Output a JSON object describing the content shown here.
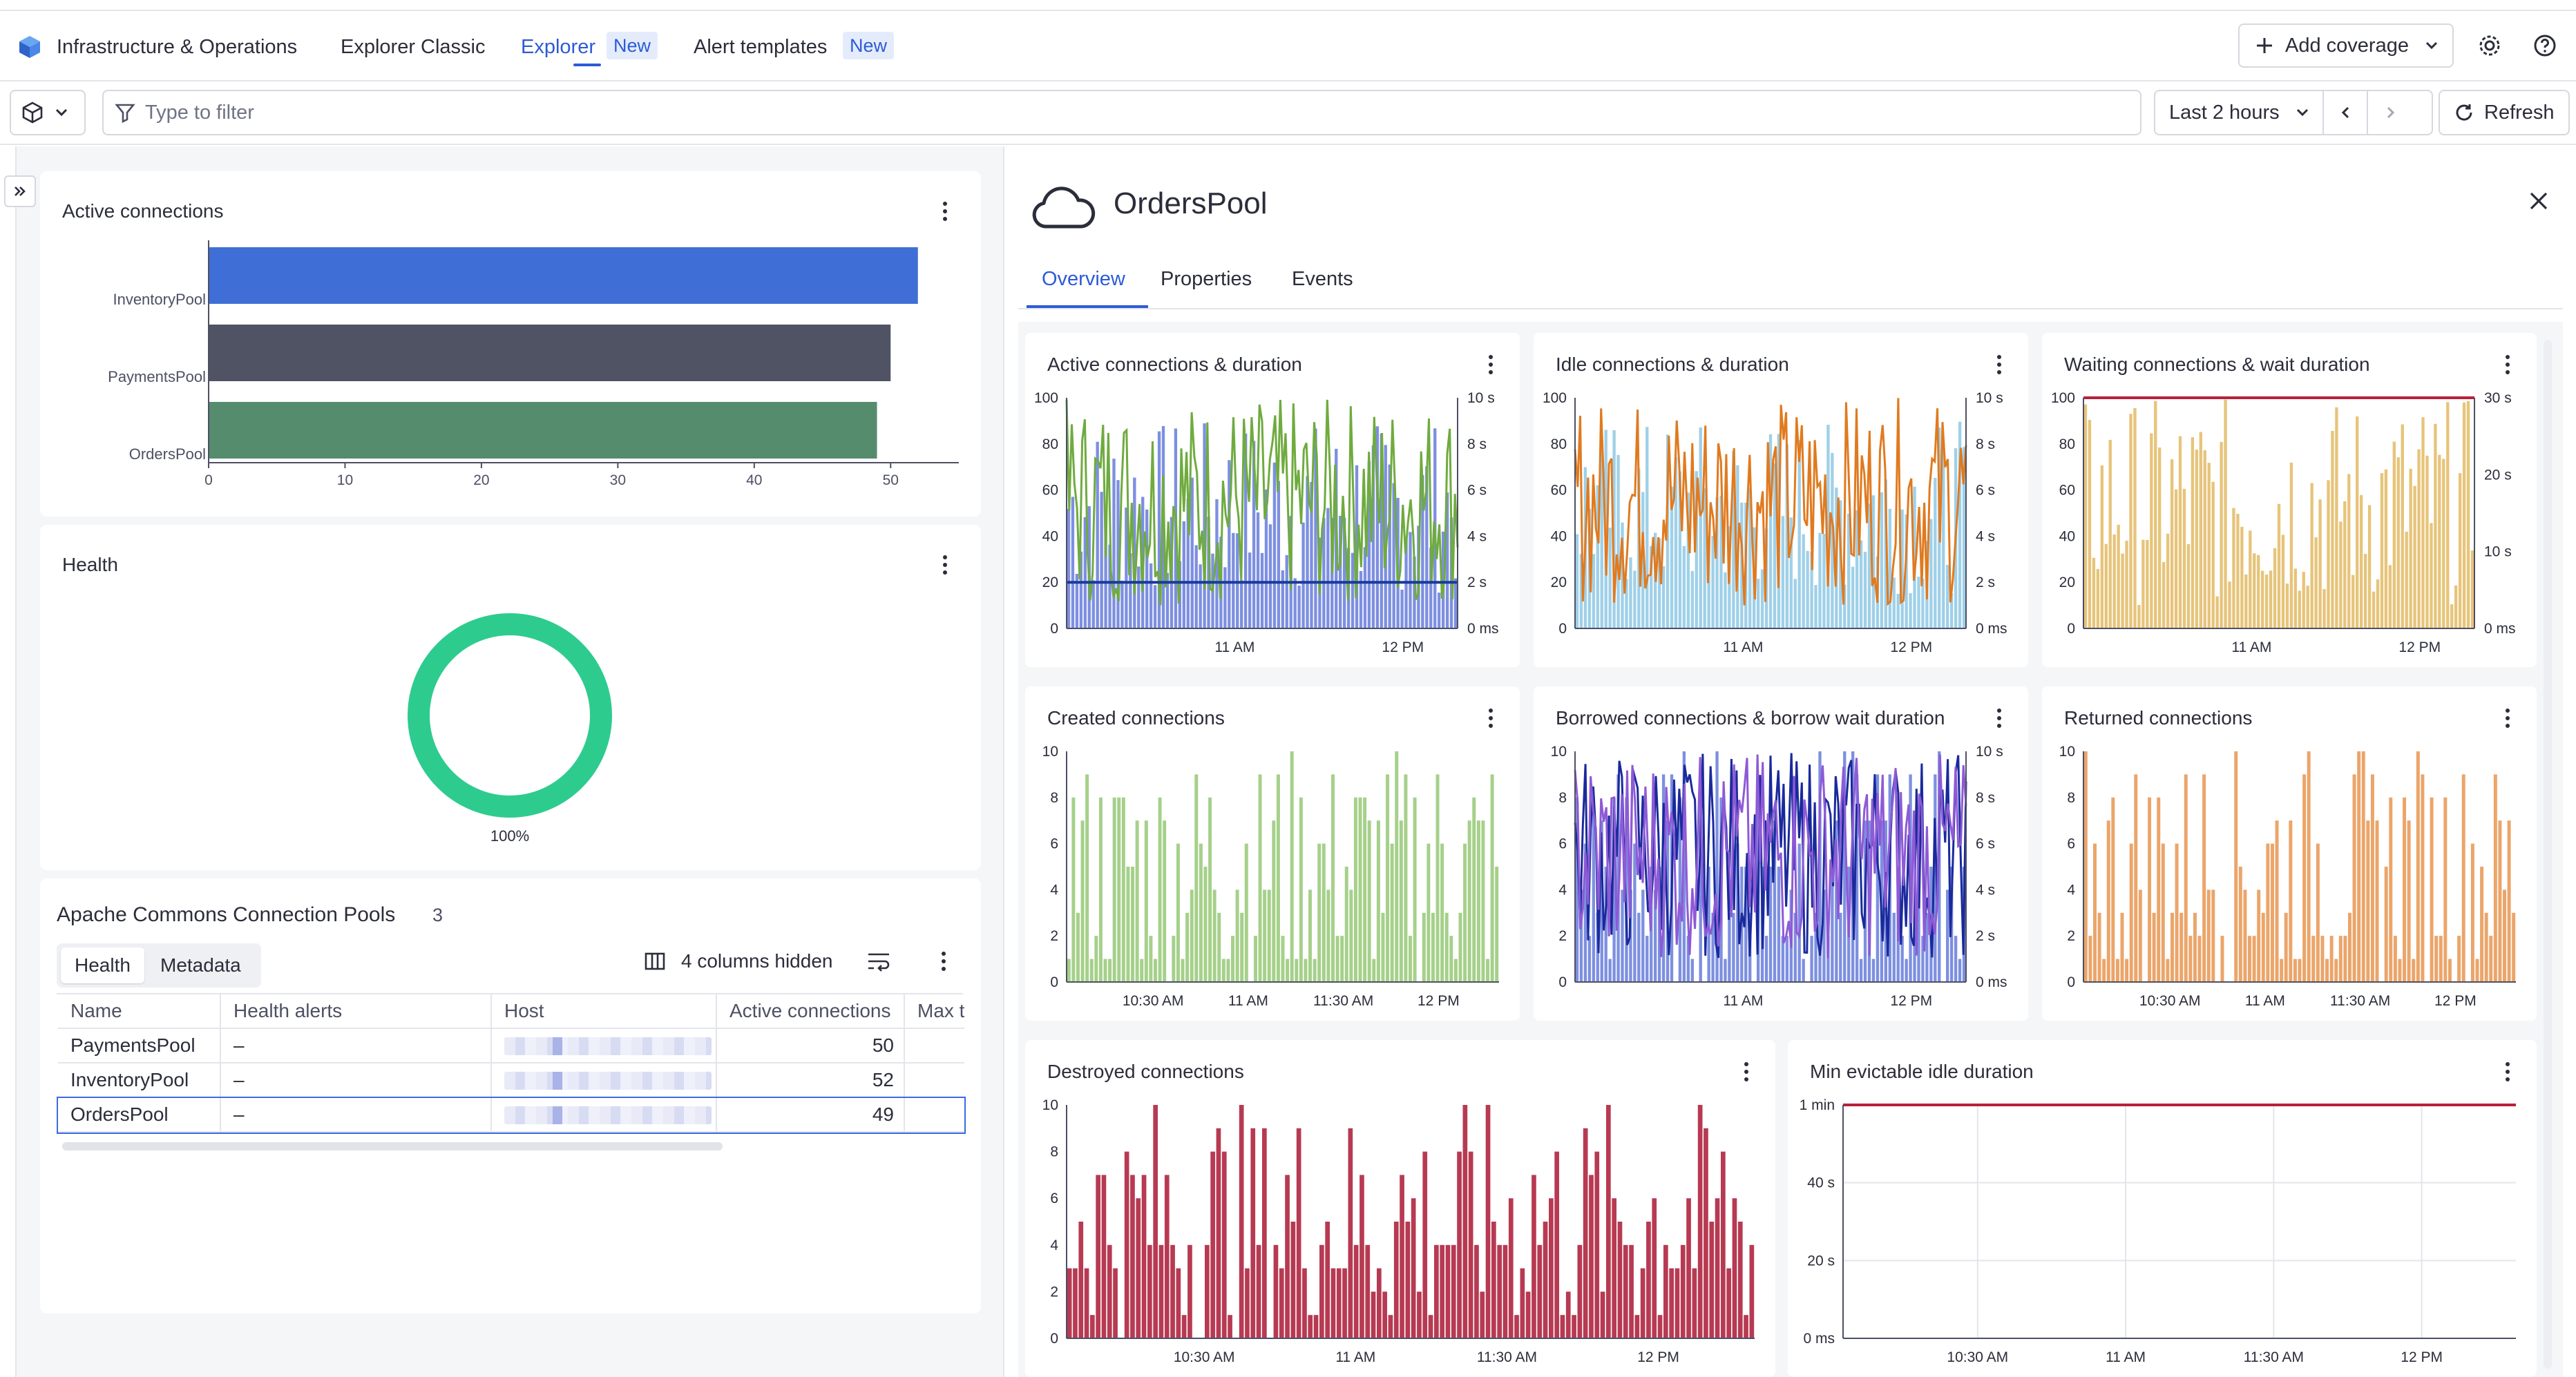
{
  "nav": {
    "app_title": "Infrastructure & Operations",
    "items": [
      {
        "label": "Explorer Classic"
      },
      {
        "label": "Explorer",
        "badge": "New"
      },
      {
        "label": "Alert templates",
        "badge": "New"
      }
    ],
    "add_coverage": "Add coverage"
  },
  "filter": {
    "placeholder": "Type to filter",
    "timeframe": "Last 2 hours",
    "refresh": "Refresh"
  },
  "left": {
    "active_connections": {
      "title": "Active connections",
      "chart_data": {
        "type": "bar",
        "orientation": "horizontal",
        "categories": [
          "InventoryPool",
          "PaymentsPool",
          "OrdersPool"
        ],
        "values": [
          52,
          50,
          49
        ],
        "colors": [
          "#3f6fd6",
          "#4f5363",
          "#558c6e"
        ],
        "xticks": [
          "0",
          "10",
          "20",
          "30",
          "40",
          "50"
        ],
        "xlim": [
          0,
          55
        ]
      }
    },
    "health": {
      "title": "Health",
      "chart_data": {
        "type": "pie",
        "values": [
          100
        ],
        "label": "100%",
        "color": "#2ecb8f"
      }
    },
    "pools": {
      "title": "Apache Commons Connection Pools",
      "count": "3",
      "seg": [
        "Health",
        "Metadata"
      ],
      "columns_hidden": "4 columns hidden",
      "headers": [
        "Name",
        "Health alerts",
        "Host",
        "Active connections",
        "Max t"
      ],
      "rows": [
        {
          "name": "PaymentsPool",
          "alerts": "–",
          "active": "50"
        },
        {
          "name": "InventoryPool",
          "alerts": "–",
          "active": "52"
        },
        {
          "name": "OrdersPool",
          "alerts": "–",
          "active": "49"
        }
      ]
    }
  },
  "detail": {
    "title": "OrdersPool",
    "tabs": [
      "Overview",
      "Properties",
      "Events"
    ],
    "charts": [
      {
        "title": "Active connections & duration",
        "type": "bar+line",
        "yticks": [
          "100",
          "80",
          "60",
          "40",
          "20",
          "0"
        ],
        "y2ticks": [
          "10 s",
          "8 s",
          "6 s",
          "4 s",
          "2 s",
          "0 ms"
        ],
        "xticks": [
          "11 AM",
          "12 PM"
        ],
        "bar_color": "#7d8fe0",
        "line_colors": [
          "#6fab3f",
          "#1a3a9c"
        ]
      },
      {
        "title": "Idle connections & duration",
        "type": "bar+line",
        "yticks": [
          "100",
          "80",
          "60",
          "40",
          "20",
          "0"
        ],
        "y2ticks": [
          "10 s",
          "8 s",
          "6 s",
          "4 s",
          "2 s",
          "0 ms"
        ],
        "xticks": [
          "11 AM",
          "12 PM"
        ],
        "bar_color": "#9fd0e8",
        "line_colors": [
          "#e07a1f"
        ]
      },
      {
        "title": "Waiting connections & wait duration",
        "type": "bar+line",
        "yticks": [
          "100",
          "80",
          "60",
          "40",
          "20",
          "0"
        ],
        "y2ticks": [
          "30 s",
          "20 s",
          "10 s",
          "0 ms"
        ],
        "xticks": [
          "11 AM",
          "12 PM"
        ],
        "bar_color": "#e7c47a",
        "line_colors": [
          "#b8203a"
        ]
      },
      {
        "title": "Created connections",
        "type": "bar",
        "yticks": [
          "10",
          "8",
          "6",
          "4",
          "2",
          "0"
        ],
        "xticks": [
          "10:30 AM",
          "11 AM",
          "11:30 AM",
          "12 PM"
        ],
        "bar_color": "#a6d08a"
      },
      {
        "title": "Borrowed connections & borrow wait duration",
        "type": "bar+line",
        "yticks": [
          "10",
          "8",
          "6",
          "4",
          "2",
          "0"
        ],
        "y2ticks": [
          "10 s",
          "8 s",
          "6 s",
          "4 s",
          "2 s",
          "0 ms"
        ],
        "xticks": [
          "11 AM",
          "12 PM"
        ],
        "bar_color": "#7d8fe0",
        "line_colors": [
          "#1a2a9c",
          "#8e5ad6"
        ]
      },
      {
        "title": "Returned connections",
        "type": "bar",
        "yticks": [
          "10",
          "8",
          "6",
          "4",
          "2",
          "0"
        ],
        "xticks": [
          "10:30 AM",
          "11 AM",
          "11:30 AM",
          "12 PM"
        ],
        "bar_color": "#eba56a"
      },
      {
        "title": "Destroyed connections",
        "type": "bar",
        "yticks": [
          "10",
          "8",
          "6",
          "4",
          "2",
          "0"
        ],
        "xticks": [
          "10:30 AM",
          "11 AM",
          "11:30 AM",
          "12 PM"
        ],
        "bar_color": "#b73a52"
      },
      {
        "title": "Min evictable idle duration",
        "type": "line",
        "yticks": [
          "1 min",
          "40 s",
          "20 s",
          "0 ms"
        ],
        "xticks": [
          "10:30 AM",
          "11 AM",
          "11:30 AM",
          "12 PM"
        ],
        "line_colors": [
          "#b8203a"
        ]
      }
    ]
  }
}
